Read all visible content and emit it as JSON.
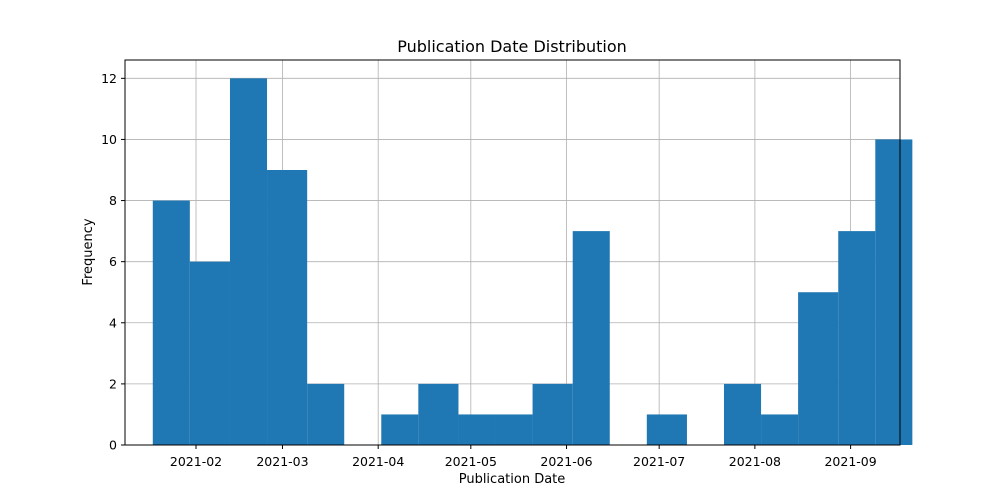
{
  "chart_data": {
    "type": "bar",
    "title": "Publication Date Distribution",
    "xlabel": "Publication Date",
    "ylabel": "Frequency",
    "x_ticks": [
      "2021-02",
      "2021-03",
      "2021-04",
      "2021-05",
      "2021-06",
      "2021-07",
      "2021-08",
      "2021-09"
    ],
    "xlim": [
      "2021-01-09",
      "2021-09-17"
    ],
    "ylim": [
      0,
      12.6
    ],
    "y_ticks": [
      0,
      2,
      4,
      6,
      8,
      10,
      12
    ],
    "bins": [
      {
        "start": "2021-01-18",
        "end": "2021-01-30",
        "value": 8
      },
      {
        "start": "2021-01-30",
        "end": "2021-02-12",
        "value": 6
      },
      {
        "start": "2021-02-12",
        "end": "2021-02-24",
        "value": 12
      },
      {
        "start": "2021-02-24",
        "end": "2021-03-09",
        "value": 9
      },
      {
        "start": "2021-03-09",
        "end": "2021-03-21",
        "value": 2
      },
      {
        "start": "2021-03-21",
        "end": "2021-04-02",
        "value": 0
      },
      {
        "start": "2021-04-02",
        "end": "2021-04-14",
        "value": 1
      },
      {
        "start": "2021-04-14",
        "end": "2021-04-27",
        "value": 2
      },
      {
        "start": "2021-04-27",
        "end": "2021-05-09",
        "value": 1
      },
      {
        "start": "2021-05-09",
        "end": "2021-05-21",
        "value": 1
      },
      {
        "start": "2021-05-21",
        "end": "2021-06-03",
        "value": 2
      },
      {
        "start": "2021-06-03",
        "end": "2021-06-15",
        "value": 7
      },
      {
        "start": "2021-06-15",
        "end": "2021-06-27",
        "value": 0
      },
      {
        "start": "2021-06-27",
        "end": "2021-07-10",
        "value": 1
      },
      {
        "start": "2021-07-10",
        "end": "2021-07-22",
        "value": 0
      },
      {
        "start": "2021-07-22",
        "end": "2021-08-03",
        "value": 2
      },
      {
        "start": "2021-08-03",
        "end": "2021-08-15",
        "value": 1
      },
      {
        "start": "2021-08-15",
        "end": "2021-08-28",
        "value": 5
      },
      {
        "start": "2021-08-28",
        "end": "2021-09-09",
        "value": 7
      },
      {
        "start": "2021-09-09",
        "end": "2021-09-21",
        "value": 10
      }
    ],
    "grid": true,
    "colors": {
      "bar": "#1f77b4",
      "grid": "#b0b0b0",
      "axis": "#000000"
    }
  }
}
